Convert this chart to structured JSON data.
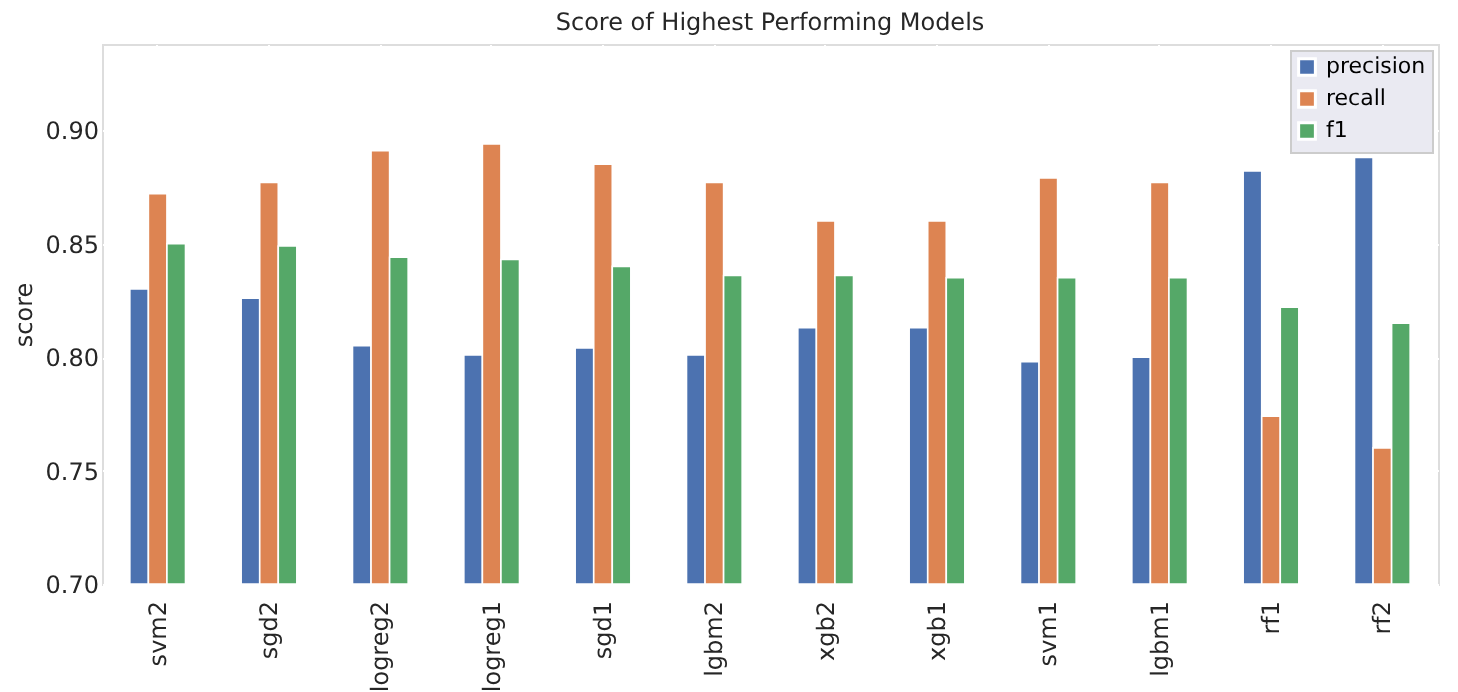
{
  "chart_data": {
    "type": "bar",
    "title": "Score of Highest Performing Models",
    "ylabel": "score",
    "categories": [
      "svm2",
      "sgd2",
      "logreg2",
      "logreg1",
      "sgd1",
      "lgbm2",
      "xgb2",
      "xgb1",
      "svm1",
      "lgbm1",
      "rf1",
      "rf2"
    ],
    "series": [
      {
        "name": "precision",
        "color": "#4c72b0",
        "values": [
          0.83,
          0.826,
          0.805,
          0.801,
          0.804,
          0.801,
          0.813,
          0.813,
          0.798,
          0.8,
          0.882,
          0.888
        ]
      },
      {
        "name": "recall",
        "color": "#dd8452",
        "values": [
          0.872,
          0.877,
          0.891,
          0.894,
          0.885,
          0.877,
          0.86,
          0.86,
          0.879,
          0.877,
          0.774,
          0.76
        ]
      },
      {
        "name": "f1",
        "color": "#55a868",
        "values": [
          0.85,
          0.849,
          0.844,
          0.843,
          0.84,
          0.836,
          0.836,
          0.835,
          0.835,
          0.835,
          0.822,
          0.815
        ]
      }
    ],
    "ylim": [
      0.7,
      0.938
    ],
    "yticks": [
      {
        "value": 0.7,
        "label": "0.70"
      },
      {
        "value": 0.75,
        "label": "0.75"
      },
      {
        "value": 0.8,
        "label": "0.80"
      },
      {
        "value": 0.85,
        "label": "0.85"
      },
      {
        "value": 0.9,
        "label": "0.90"
      }
    ],
    "grid": true,
    "legend": "top right"
  }
}
